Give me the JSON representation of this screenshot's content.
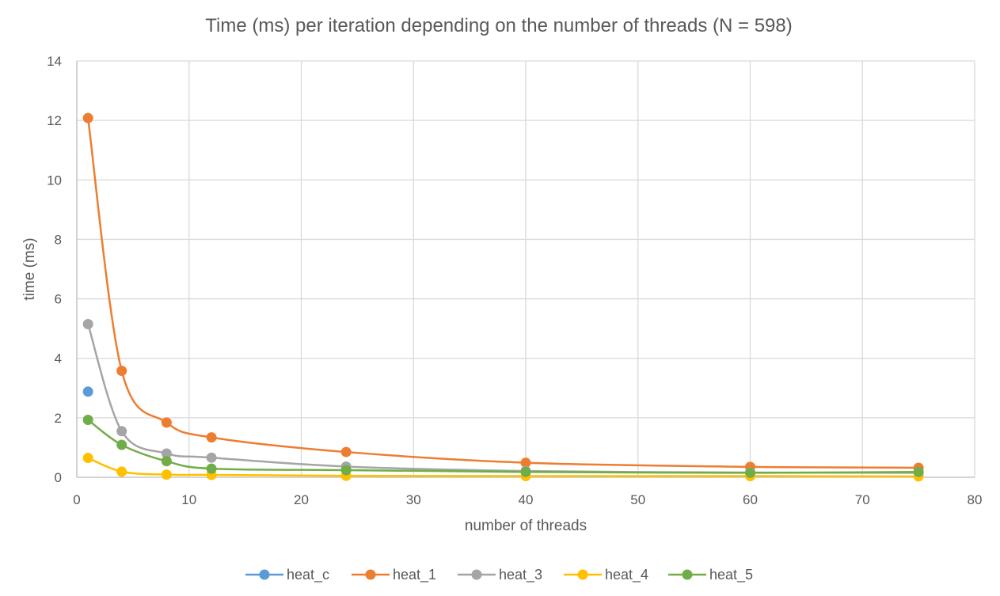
{
  "chart_data": {
    "type": "scatter",
    "title": "Time (ms) per iteration depending on the number of threads (N = 598)",
    "xlabel": "number of threads",
    "ylabel": "time (ms)",
    "xlim": [
      0,
      80
    ],
    "ylim": [
      0,
      14
    ],
    "xticks": [
      0,
      10,
      20,
      30,
      40,
      50,
      60,
      70,
      80
    ],
    "yticks": [
      0,
      2,
      4,
      6,
      8,
      10,
      12,
      14
    ],
    "grid": true,
    "legend_position": "bottom",
    "series": [
      {
        "name": "heat_c",
        "color": "#5B9BD5",
        "x": [
          1
        ],
        "y": [
          2.88
        ]
      },
      {
        "name": "heat_1",
        "color": "#ED7D31",
        "x": [
          1,
          4,
          8,
          12,
          24,
          40,
          60,
          75
        ],
        "y": [
          12.08,
          3.58,
          1.84,
          1.34,
          0.85,
          0.49,
          0.35,
          0.32
        ]
      },
      {
        "name": "heat_3",
        "color": "#A5A5A5",
        "x": [
          1,
          4,
          8,
          12,
          24,
          40,
          60,
          75
        ],
        "y": [
          5.15,
          1.55,
          0.8,
          0.66,
          0.36,
          0.21,
          0.16,
          0.15
        ]
      },
      {
        "name": "heat_4",
        "color": "#FFC000",
        "x": [
          1,
          4,
          8,
          12,
          24,
          40,
          60,
          75
        ],
        "y": [
          0.65,
          0.19,
          0.09,
          0.08,
          0.05,
          0.04,
          0.04,
          0.03
        ]
      },
      {
        "name": "heat_5",
        "color": "#70AD47",
        "x": [
          1,
          4,
          8,
          12,
          24,
          40,
          60,
          75
        ],
        "y": [
          1.93,
          1.09,
          0.54,
          0.29,
          0.24,
          0.18,
          0.15,
          0.18
        ]
      }
    ]
  }
}
